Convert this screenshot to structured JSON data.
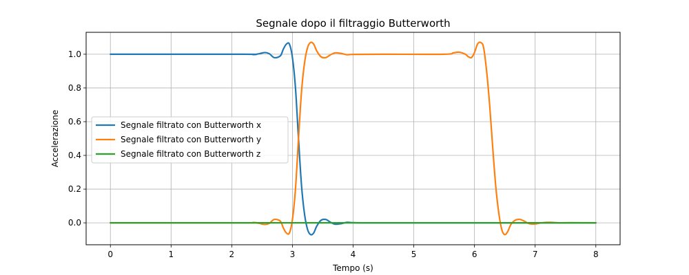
{
  "chart_data": {
    "type": "line",
    "title": "Segnale dopo il filtraggio Butterworth",
    "xlabel": "Tempo (s)",
    "ylabel": "Accelerazione",
    "xlim": [
      -0.4,
      8.4
    ],
    "ylim": [
      -0.13,
      1.13
    ],
    "xticks": [
      0,
      1,
      2,
      3,
      4,
      5,
      6,
      7,
      8
    ],
    "xtick_labels": [
      "0",
      "1",
      "2",
      "3",
      "4",
      "5",
      "6",
      "7",
      "8"
    ],
    "yticks": [
      0.0,
      0.2,
      0.4,
      0.6,
      0.8,
      1.0
    ],
    "ytick_labels": [
      "0.0",
      "0.2",
      "0.4",
      "0.6",
      "0.8",
      "1.0"
    ],
    "grid": true,
    "legend_position": "center-left",
    "series": [
      {
        "name": "Segnale filtrato con Butterworth x",
        "color": "#1f77b4",
        "x": [
          0,
          2.2,
          2.35,
          2.45,
          2.55,
          2.62,
          2.7,
          2.8,
          2.85,
          2.9,
          2.95,
          3.0,
          3.05,
          3.1,
          3.15,
          3.2,
          3.25,
          3.3,
          3.35,
          3.4,
          3.47,
          3.55,
          3.62,
          3.7,
          3.8,
          3.9,
          4.0,
          4.2,
          4.5,
          8
        ],
        "y": [
          1.0,
          1.0,
          0.998,
          1.003,
          1.01,
          1.003,
          0.98,
          0.99,
          1.03,
          1.06,
          1.06,
          0.98,
          0.8,
          0.5,
          0.22,
          0.05,
          -0.04,
          -0.07,
          -0.06,
          -0.02,
          0.015,
          0.02,
          0.005,
          -0.008,
          -0.005,
          0.003,
          0.001,
          0.0,
          0.0,
          0.0
        ]
      },
      {
        "name": "Segnale filtrato con Butterworth y",
        "color": "#ff7f0e",
        "x": [
          0,
          2.2,
          2.35,
          2.45,
          2.55,
          2.62,
          2.7,
          2.8,
          2.85,
          2.9,
          2.95,
          3.0,
          3.05,
          3.1,
          3.15,
          3.2,
          3.25,
          3.3,
          3.35,
          3.4,
          3.47,
          3.55,
          3.62,
          3.7,
          3.8,
          3.9,
          4.0,
          4.5,
          5.5,
          5.65,
          5.75,
          5.85,
          5.9,
          5.95,
          6.0,
          6.05,
          6.1,
          6.15,
          6.2,
          6.25,
          6.3,
          6.35,
          6.4,
          6.45,
          6.5,
          6.55,
          6.6,
          6.67,
          6.75,
          6.82,
          6.9,
          7.0,
          7.1,
          7.25,
          7.4,
          7.6,
          8
        ],
        "y": [
          0.0,
          0.0,
          0.002,
          -0.003,
          -0.01,
          -0.003,
          0.02,
          0.01,
          -0.03,
          -0.06,
          -0.06,
          0.02,
          0.2,
          0.5,
          0.78,
          0.95,
          1.04,
          1.07,
          1.06,
          1.02,
          0.985,
          0.98,
          0.995,
          1.008,
          1.005,
          0.997,
          0.999,
          1.0,
          1.0,
          1.008,
          1.012,
          1.0,
          0.985,
          0.98,
          1.01,
          1.06,
          1.07,
          1.04,
          0.9,
          0.7,
          0.45,
          0.22,
          0.06,
          -0.04,
          -0.07,
          -0.05,
          -0.01,
          0.015,
          0.02,
          0.01,
          -0.005,
          -0.007,
          0.0,
          0.003,
          0.0,
          0.001,
          0.0
        ]
      },
      {
        "name": "Segnale filtrato con Butterworth z",
        "color": "#2ca02c",
        "x": [
          0,
          8
        ],
        "y": [
          0.0,
          0.0
        ]
      }
    ]
  }
}
